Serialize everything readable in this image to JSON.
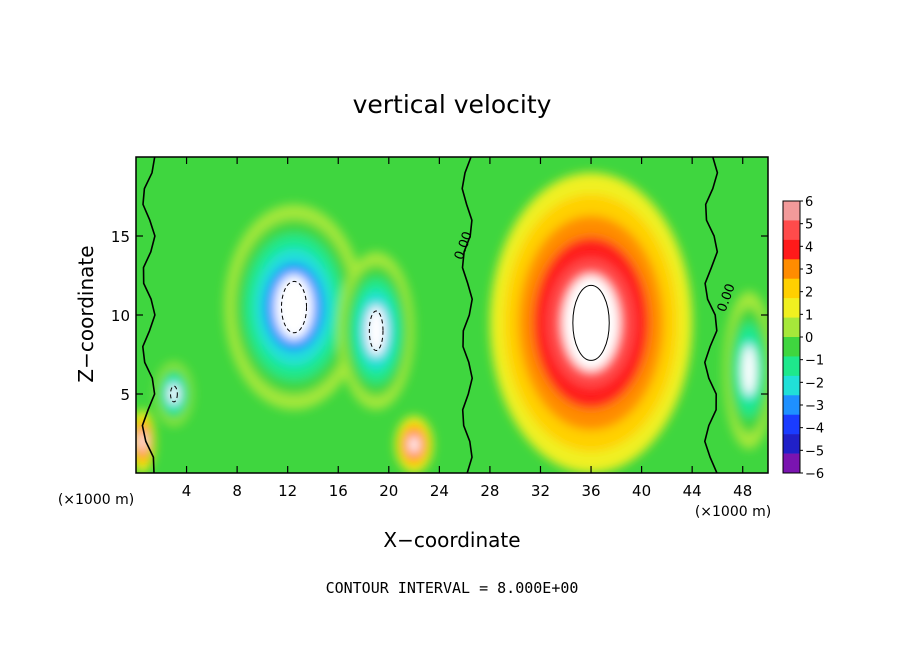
{
  "chart_data": {
    "type": "heatmap",
    "title": "vertical velocity",
    "xlabel": "X−coordinate",
    "ylabel": "Z−coordinate",
    "x_unit_left": "(×1000 m)",
    "x_unit_right": "(×1000 m)",
    "xlim": [
      0,
      50
    ],
    "ylim": [
      0,
      20
    ],
    "x_ticks": [
      4,
      8,
      12,
      16,
      20,
      24,
      28,
      32,
      36,
      40,
      44,
      48
    ],
    "x_tick_labels": [
      "4",
      "8",
      "12",
      "16",
      "20",
      "24",
      "28",
      "32",
      "36",
      "40",
      "44",
      "48"
    ],
    "y_ticks": [
      5,
      10,
      15
    ],
    "y_tick_labels": [
      "5",
      "10",
      "15"
    ],
    "footer": "CONTOUR INTERVAL = 8.000E+00",
    "contour_labels": [
      {
        "text": "0.00",
        "x": 26.2,
        "z": 14.3
      },
      {
        "text": "0.00",
        "x": 47.0,
        "z": 11.0
      }
    ],
    "colorbar": {
      "labels": [
        "6",
        "5",
        "4",
        "3",
        "2",
        "1",
        "0",
        "−1",
        "−2",
        "−3",
        "−4",
        "−5",
        "−6"
      ],
      "values": [
        6,
        5,
        4,
        3,
        2,
        1,
        0,
        -1,
        -2,
        -3,
        -4,
        -5,
        -6
      ],
      "colors": [
        "#f29a9a",
        "#ff4b4b",
        "#ff1a1a",
        "#ff8c00",
        "#ffd000",
        "#f0f020",
        "#a6e83a",
        "#3fd63f",
        "#1ee88c",
        "#20e0d8",
        "#1e90ff",
        "#1a3cff",
        "#2020c8",
        "#7a14b0"
      ]
    },
    "features": [
      {
        "kind": "downdraft",
        "x": 12.5,
        "z": 10.5,
        "rx": 5.5,
        "rz": 6.5,
        "value": -7
      },
      {
        "kind": "downdraft",
        "x": 19.0,
        "z": 9.0,
        "rx": 3.0,
        "rz": 5.0,
        "value": -6
      },
      {
        "kind": "downdraft",
        "x": 3.0,
        "z": 5.0,
        "rx": 1.5,
        "rz": 2.0,
        "value": -6
      },
      {
        "kind": "downdraft",
        "x": 48.5,
        "z": 6.5,
        "rx": 2.0,
        "rz": 5.0,
        "value": -5
      },
      {
        "kind": "updraft",
        "x": 36.0,
        "z": 9.5,
        "rx": 8.0,
        "rz": 9.5,
        "value": 7
      },
      {
        "kind": "updraft",
        "x": 22.0,
        "z": 1.8,
        "rx": 1.5,
        "rz": 1.8,
        "value": 5
      },
      {
        "kind": "updraft",
        "x": 0.5,
        "z": 2.0,
        "rx": 1.0,
        "rz": 2.0,
        "value": 5
      }
    ],
    "grid": false,
    "legend": "right"
  }
}
